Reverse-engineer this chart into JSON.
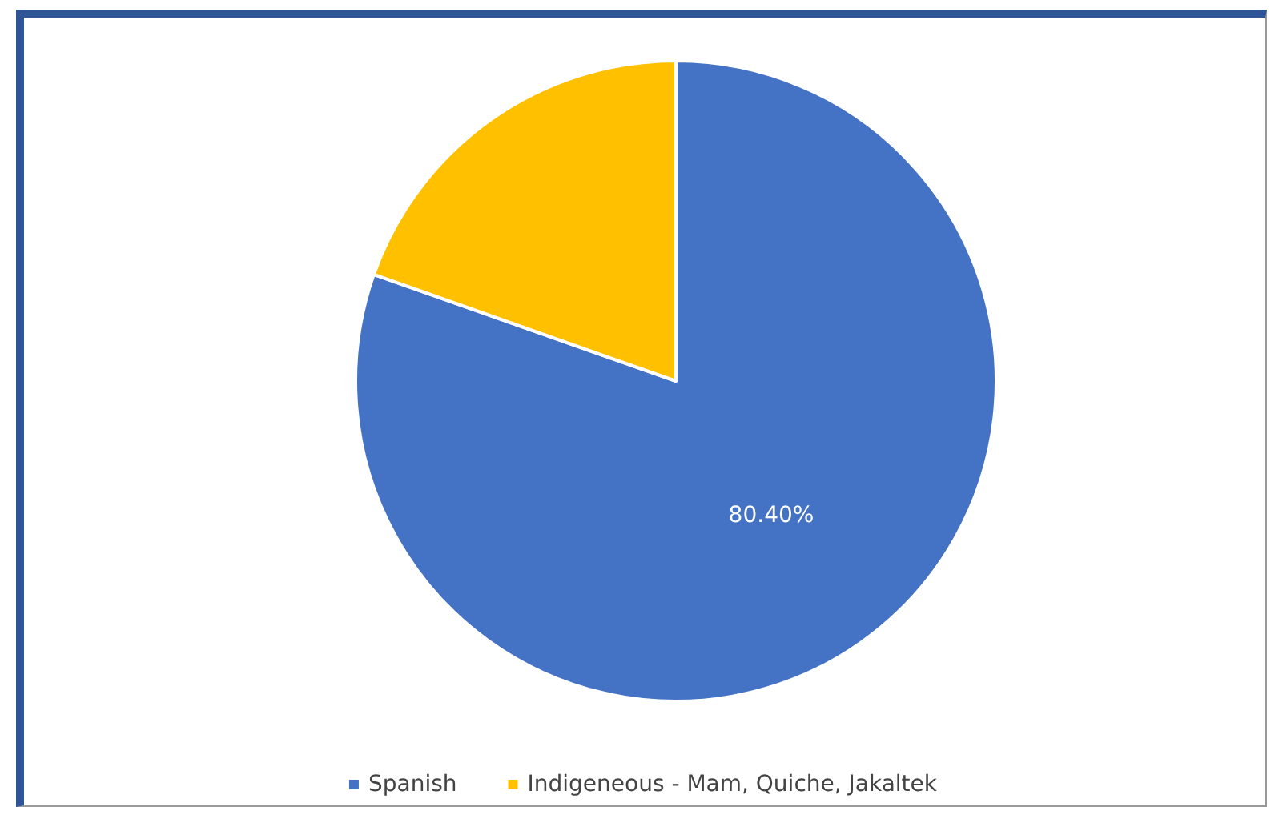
{
  "chart_data": {
    "type": "pie",
    "categories": [
      "Spanish",
      "Indigeneous - Mam, Quiche, Jakaltek"
    ],
    "values": [
      80.4,
      19.6
    ],
    "colors": [
      "#4472c4",
      "#ffc000"
    ],
    "value_labels": [
      "80.40%",
      null
    ],
    "legend": "bottom"
  }
}
